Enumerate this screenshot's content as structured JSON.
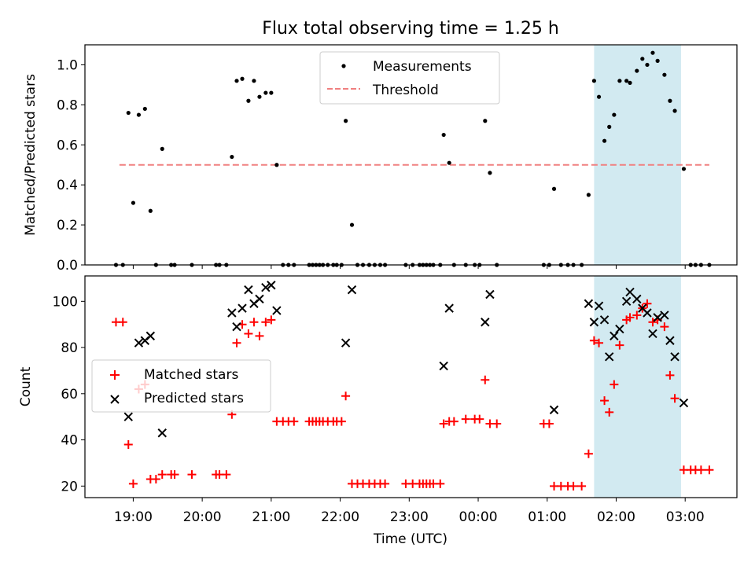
{
  "title": "Flux total observing time = 1.25 h",
  "colors": {
    "measure": "#000000",
    "threshold": "#f08080",
    "matched": "#ff0000",
    "predicted": "#000000",
    "highlight": "#add8e6"
  },
  "chart_data": [
    {
      "type": "scatter",
      "ylabel": "Matched/Predicted stars",
      "ylim": [
        0,
        1.1
      ],
      "yticks": [
        0.0,
        0.2,
        0.4,
        0.6,
        0.8,
        1.0
      ],
      "ytick_labels": [
        "0.0",
        "0.2",
        "0.4",
        "0.6",
        "0.8",
        "1.0"
      ],
      "xlim_hours": [
        18.3,
        27.75
      ],
      "highlight_span_hours": [
        25.68,
        26.94
      ],
      "legend": {
        "position": "upper center",
        "entries": [
          "Measurements",
          "Threshold"
        ]
      },
      "threshold": {
        "value": 0.5,
        "x_hours": [
          18.8,
          27.35
        ]
      },
      "series": [
        {
          "name": "Measurements",
          "points": [
            [
              18.75,
              0
            ],
            [
              18.85,
              0
            ],
            [
              18.93,
              0.76
            ],
            [
              19.0,
              0.31
            ],
            [
              19.08,
              0.75
            ],
            [
              19.17,
              0.78
            ],
            [
              19.25,
              0.27
            ],
            [
              19.33,
              0
            ],
            [
              19.42,
              0.58
            ],
            [
              19.55,
              0
            ],
            [
              19.6,
              0
            ],
            [
              19.85,
              0
            ],
            [
              20.2,
              0
            ],
            [
              20.25,
              0
            ],
            [
              20.35,
              0
            ],
            [
              20.43,
              0.54
            ],
            [
              20.5,
              0.92
            ],
            [
              20.58,
              0.93
            ],
            [
              20.67,
              0.82
            ],
            [
              20.75,
              0.92
            ],
            [
              20.83,
              0.84
            ],
            [
              20.92,
              0.86
            ],
            [
              21.0,
              0.86
            ],
            [
              21.08,
              0.5
            ],
            [
              21.17,
              0
            ],
            [
              21.25,
              0
            ],
            [
              21.33,
              0
            ],
            [
              21.55,
              0
            ],
            [
              21.6,
              0
            ],
            [
              21.65,
              0
            ],
            [
              21.7,
              0
            ],
            [
              21.75,
              0
            ],
            [
              21.82,
              0
            ],
            [
              21.9,
              0
            ],
            [
              21.95,
              0
            ],
            [
              22.02,
              0
            ],
            [
              22.08,
              0.72
            ],
            [
              22.17,
              0.2
            ],
            [
              22.25,
              0
            ],
            [
              22.33,
              0
            ],
            [
              22.42,
              0
            ],
            [
              22.5,
              0
            ],
            [
              22.58,
              0
            ],
            [
              22.65,
              0
            ],
            [
              22.95,
              0
            ],
            [
              23.05,
              0
            ],
            [
              23.15,
              0
            ],
            [
              23.2,
              0
            ],
            [
              23.25,
              0
            ],
            [
              23.3,
              0
            ],
            [
              23.35,
              0
            ],
            [
              23.45,
              0
            ],
            [
              23.5,
              0.65
            ],
            [
              23.58,
              0.51
            ],
            [
              23.65,
              0
            ],
            [
              23.82,
              0
            ],
            [
              23.95,
              0
            ],
            [
              24.02,
              0
            ],
            [
              24.1,
              0.72
            ],
            [
              24.17,
              0.46
            ],
            [
              24.27,
              0
            ],
            [
              24.95,
              0
            ],
            [
              25.03,
              0
            ],
            [
              25.1,
              0.38
            ],
            [
              25.2,
              0
            ],
            [
              25.3,
              0
            ],
            [
              25.38,
              0
            ],
            [
              25.5,
              0
            ],
            [
              25.6,
              0.35
            ],
            [
              25.68,
              0.92
            ],
            [
              25.75,
              0.84
            ],
            [
              25.83,
              0.62
            ],
            [
              25.9,
              0.69
            ],
            [
              25.97,
              0.75
            ],
            [
              26.05,
              0.92
            ],
            [
              26.15,
              0.92
            ],
            [
              26.2,
              0.91
            ],
            [
              26.3,
              0.97
            ],
            [
              26.38,
              1.03
            ],
            [
              26.45,
              1.0
            ],
            [
              26.53,
              1.06
            ],
            [
              26.6,
              1.02
            ],
            [
              26.7,
              0.95
            ],
            [
              26.78,
              0.82
            ],
            [
              26.85,
              0.77
            ],
            [
              26.98,
              0.48
            ],
            [
              27.08,
              0
            ],
            [
              27.15,
              0
            ],
            [
              27.23,
              0
            ],
            [
              27.35,
              0
            ]
          ]
        }
      ]
    },
    {
      "type": "scatter",
      "xlabel": "Time (UTC)",
      "ylabel": "Count",
      "ylim": [
        15,
        111
      ],
      "yticks": [
        20,
        40,
        60,
        80,
        100
      ],
      "ytick_labels": [
        "20",
        "40",
        "60",
        "80",
        "100"
      ],
      "xlim_hours": [
        18.3,
        27.75
      ],
      "xticks_hours": [
        19,
        20,
        21,
        22,
        23,
        24,
        25,
        26,
        27
      ],
      "xtick_labels": [
        "19:00",
        "20:00",
        "21:00",
        "22:00",
        "23:00",
        "00:00",
        "01:00",
        "02:00",
        "03:00"
      ],
      "highlight_span_hours": [
        25.68,
        26.94
      ],
      "legend": {
        "position": "center left",
        "entries": [
          "Matched stars",
          "Predicted stars"
        ]
      },
      "series": [
        {
          "name": "Matched stars",
          "marker": "plus",
          "points": [
            [
              18.75,
              91
            ],
            [
              18.85,
              91
            ],
            [
              18.93,
              38
            ],
            [
              19.0,
              21
            ],
            [
              19.08,
              62
            ],
            [
              19.17,
              64
            ],
            [
              19.25,
              23
            ],
            [
              19.33,
              23
            ],
            [
              19.42,
              25
            ],
            [
              19.55,
              25
            ],
            [
              19.6,
              25
            ],
            [
              19.85,
              25
            ],
            [
              20.2,
              25
            ],
            [
              20.25,
              25
            ],
            [
              20.35,
              25
            ],
            [
              20.43,
              51
            ],
            [
              20.5,
              82
            ],
            [
              20.58,
              90
            ],
            [
              20.67,
              86
            ],
            [
              20.75,
              91
            ],
            [
              20.83,
              85
            ],
            [
              20.92,
              91
            ],
            [
              21.0,
              92
            ],
            [
              21.08,
              48
            ],
            [
              21.17,
              48
            ],
            [
              21.25,
              48
            ],
            [
              21.33,
              48
            ],
            [
              21.55,
              48
            ],
            [
              21.6,
              48
            ],
            [
              21.65,
              48
            ],
            [
              21.7,
              48
            ],
            [
              21.75,
              48
            ],
            [
              21.82,
              48
            ],
            [
              21.9,
              48
            ],
            [
              21.95,
              48
            ],
            [
              22.02,
              48
            ],
            [
              22.08,
              59
            ],
            [
              22.17,
              21
            ],
            [
              22.25,
              21
            ],
            [
              22.33,
              21
            ],
            [
              22.42,
              21
            ],
            [
              22.5,
              21
            ],
            [
              22.58,
              21
            ],
            [
              22.65,
              21
            ],
            [
              22.95,
              21
            ],
            [
              23.05,
              21
            ],
            [
              23.15,
              21
            ],
            [
              23.2,
              21
            ],
            [
              23.25,
              21
            ],
            [
              23.3,
              21
            ],
            [
              23.35,
              21
            ],
            [
              23.45,
              21
            ],
            [
              23.5,
              47
            ],
            [
              23.58,
              48
            ],
            [
              23.65,
              48
            ],
            [
              23.82,
              49
            ],
            [
              23.95,
              49
            ],
            [
              24.02,
              49
            ],
            [
              24.1,
              66
            ],
            [
              24.17,
              47
            ],
            [
              24.27,
              47
            ],
            [
              24.95,
              47
            ],
            [
              25.03,
              47
            ],
            [
              25.1,
              20
            ],
            [
              25.2,
              20
            ],
            [
              25.3,
              20
            ],
            [
              25.38,
              20
            ],
            [
              25.5,
              20
            ],
            [
              25.6,
              34
            ],
            [
              25.68,
              83
            ],
            [
              25.75,
              82
            ],
            [
              25.83,
              57
            ],
            [
              25.9,
              52
            ],
            [
              25.97,
              64
            ],
            [
              26.05,
              81
            ],
            [
              26.15,
              92
            ],
            [
              26.2,
              93
            ],
            [
              26.3,
              94
            ],
            [
              26.38,
              97
            ],
            [
              26.45,
              99
            ],
            [
              26.53,
              91
            ],
            [
              26.6,
              92
            ],
            [
              26.7,
              89
            ],
            [
              26.78,
              68
            ],
            [
              26.85,
              58
            ],
            [
              26.98,
              27
            ],
            [
              27.08,
              27
            ],
            [
              27.15,
              27
            ],
            [
              27.23,
              27
            ],
            [
              27.35,
              27
            ]
          ]
        },
        {
          "name": "Predicted stars",
          "marker": "x",
          "points": [
            [
              18.93,
              50
            ],
            [
              19.08,
              82
            ],
            [
              19.17,
              83
            ],
            [
              19.25,
              85
            ],
            [
              19.42,
              43
            ],
            [
              20.43,
              95
            ],
            [
              20.5,
              89
            ],
            [
              20.58,
              97
            ],
            [
              20.67,
              105
            ],
            [
              20.75,
              99
            ],
            [
              20.83,
              101
            ],
            [
              20.92,
              106
            ],
            [
              21.0,
              107
            ],
            [
              21.08,
              96
            ],
            [
              22.08,
              82
            ],
            [
              22.17,
              105
            ],
            [
              23.5,
              72
            ],
            [
              23.58,
              97
            ],
            [
              24.1,
              91
            ],
            [
              24.17,
              103
            ],
            [
              25.1,
              53
            ],
            [
              25.6,
              99
            ],
            [
              25.68,
              91
            ],
            [
              25.75,
              98
            ],
            [
              25.83,
              92
            ],
            [
              25.9,
              76
            ],
            [
              25.97,
              85
            ],
            [
              26.05,
              88
            ],
            [
              26.15,
              100
            ],
            [
              26.2,
              104
            ],
            [
              26.3,
              101
            ],
            [
              26.38,
              97
            ],
            [
              26.45,
              95
            ],
            [
              26.53,
              86
            ],
            [
              26.6,
              93
            ],
            [
              26.7,
              94
            ],
            [
              26.78,
              83
            ],
            [
              26.85,
              76
            ],
            [
              26.98,
              56
            ]
          ]
        }
      ]
    }
  ]
}
